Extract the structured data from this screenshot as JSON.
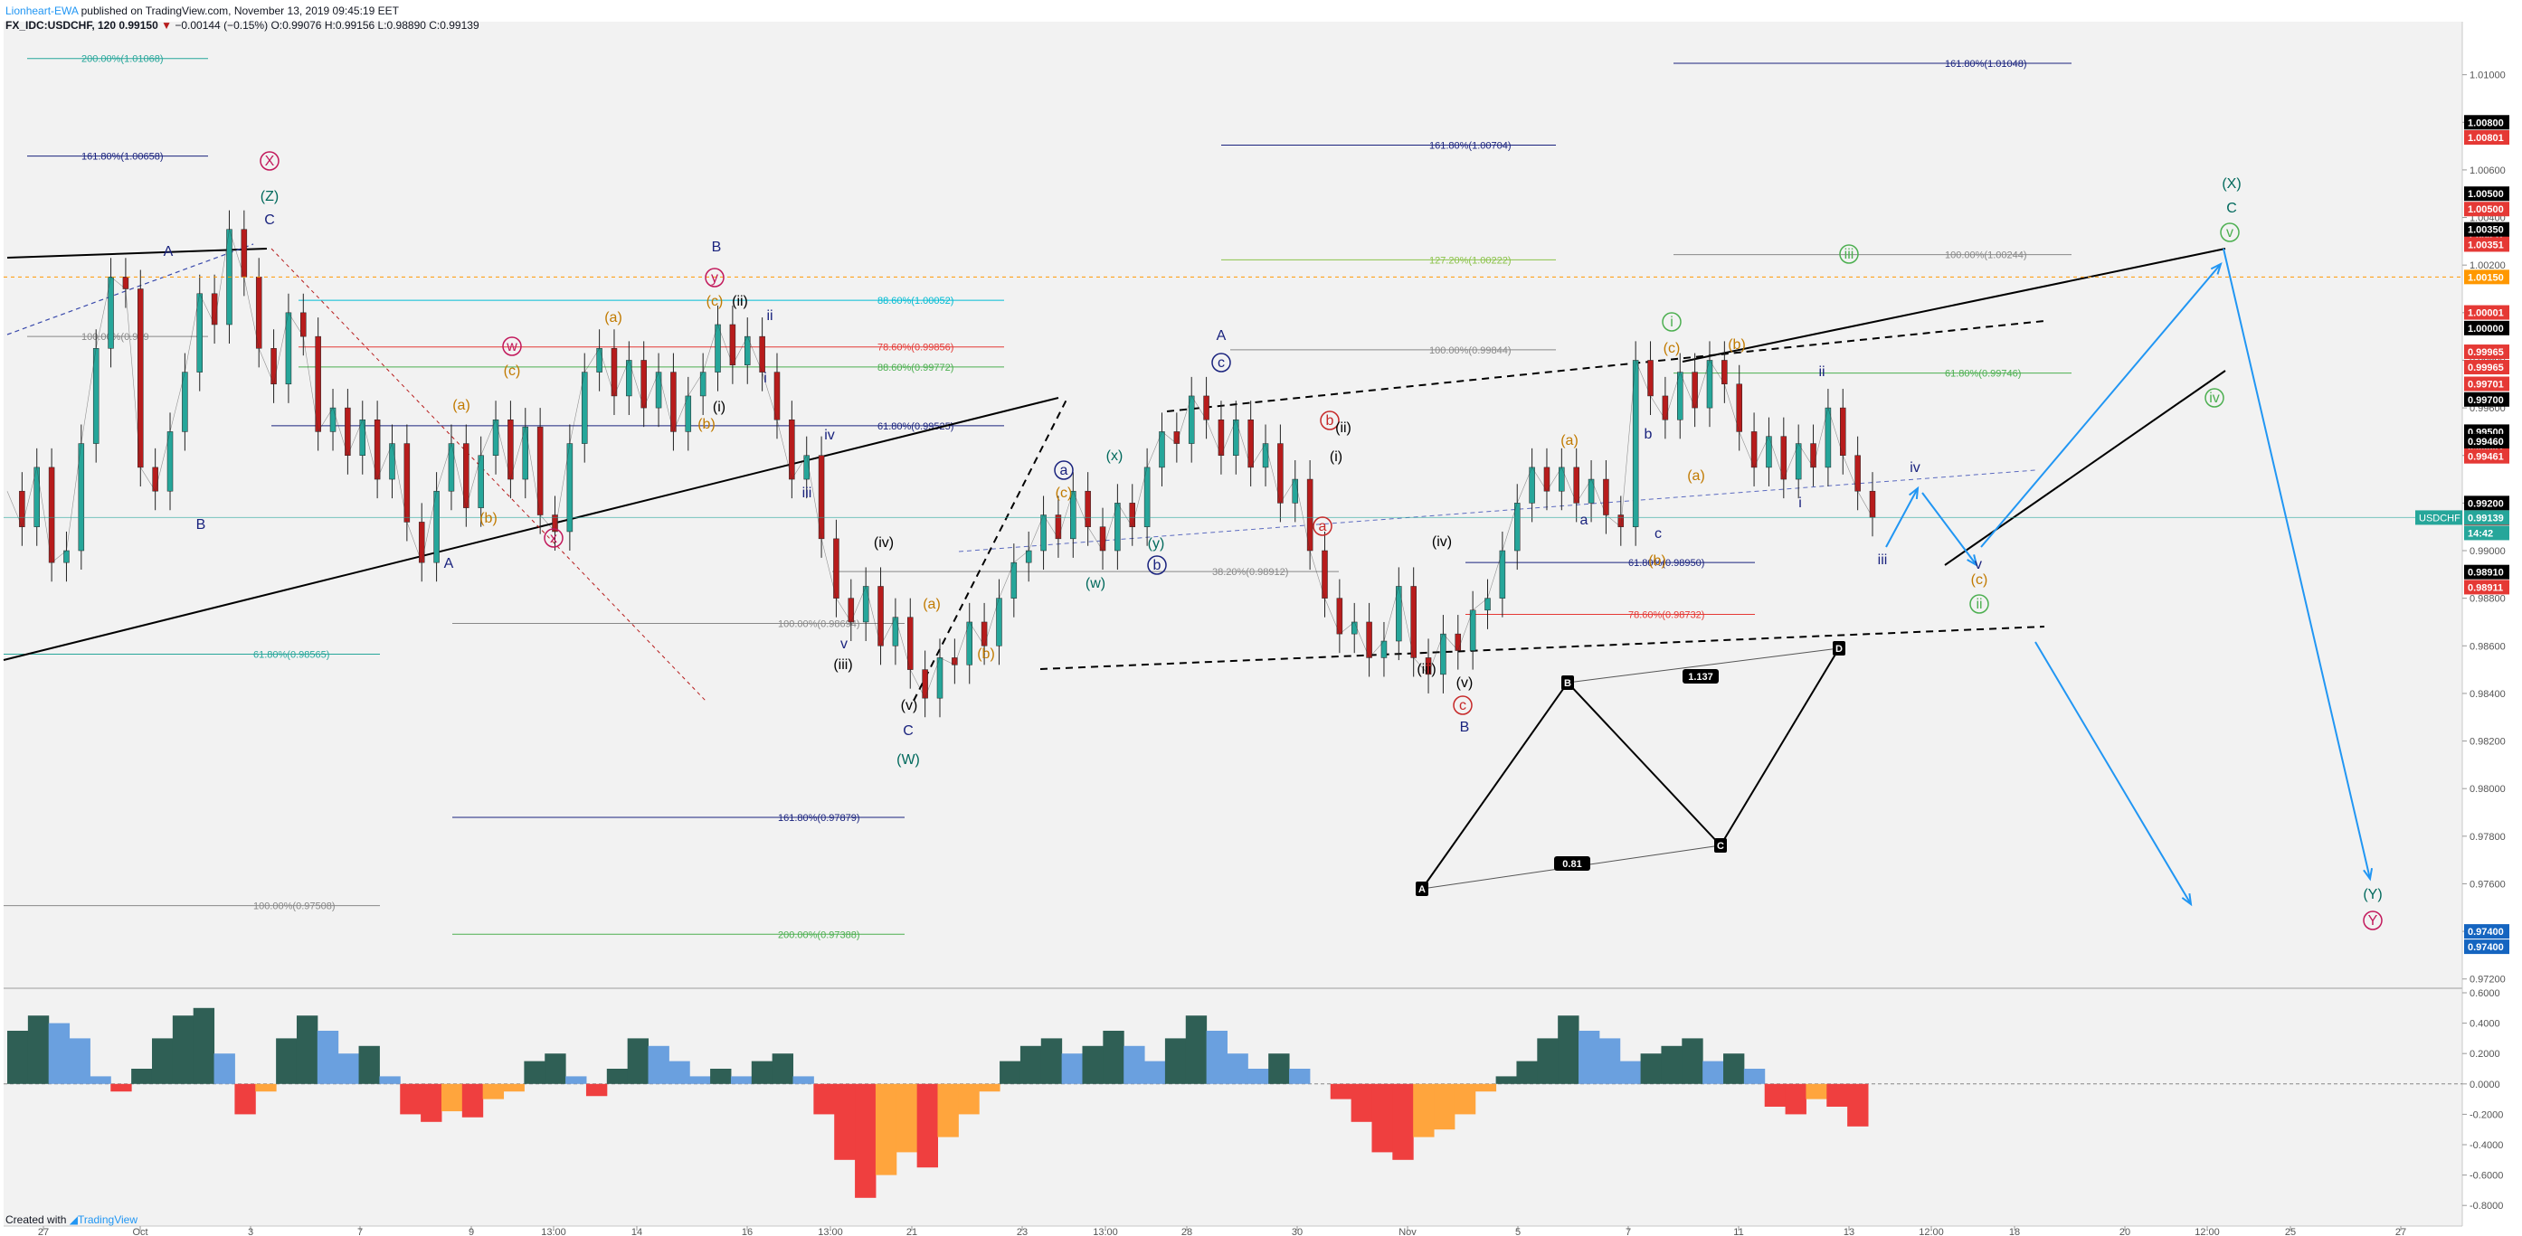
{
  "header": {
    "author": "Lionheart-EWA",
    "published": "published on TradingView.com, November 13, 2019 09:45:19 EET",
    "symbol": "FX_IDC:USDCHF, 120",
    "last": "0.99150",
    "change": "−0.00144 (−0.15%)",
    "ohlc": "O:0.99076 H:0.99156 L:0.98890 C:0.99139"
  },
  "footer": {
    "created": "Created with",
    "brand": "TradingView"
  },
  "colors": {
    "background": "#f2f2f2",
    "up": "#26a69a",
    "down": "#b71c1c",
    "wave_blue": "#1a237e",
    "wave_teal": "#00695c",
    "wave_orange": "#c17a00",
    "wave_magenta": "#c2185b",
    "wave_green": "#4caf50",
    "projection": "#2196f3",
    "osc_up_strong": "#2f5f55",
    "osc_up_weak": "#6aa0df",
    "osc_down_strong": "#ef3f3f",
    "osc_down_weak": "#ffa53d"
  },
  "chart_data": [
    {
      "type": "line",
      "title": "",
      "ylim": [
        0.9718,
        1.012
      ],
      "y_ticks": [
        "1.01000",
        "1.00800",
        "1.00600",
        "1.00400",
        "1.00200",
        "1.00000",
        "0.99800",
        "0.99600",
        "0.99400",
        "0.99200",
        "0.99000",
        "0.98800",
        "0.98600",
        "0.98400",
        "0.98200",
        "0.98000",
        "0.97800",
        "0.97600",
        "0.97400",
        "0.97200"
      ],
      "x_ticks": [
        "27",
        "Oct",
        "3",
        "7",
        "9",
        "13:00",
        "14",
        "16",
        "13:00",
        "21",
        "23",
        "13:00",
        "28",
        "30",
        "Nov",
        "5",
        "7",
        "11",
        "13",
        "12:00",
        "18",
        "20",
        "12:00",
        "25",
        "27"
      ],
      "price_path": [
        {
          "x": 0,
          "y": 0.9925
        },
        {
          "x": 1,
          "y": 0.991
        },
        {
          "x": 2,
          "y": 0.9935
        },
        {
          "x": 3,
          "y": 0.9895
        },
        {
          "x": 4,
          "y": 0.99
        },
        {
          "x": 5,
          "y": 0.9945
        },
        {
          "x": 6,
          "y": 0.9985
        },
        {
          "x": 7,
          "y": 1.0015
        },
        {
          "x": 8,
          "y": 1.001
        },
        {
          "x": 9,
          "y": 0.9935
        },
        {
          "x": 10,
          "y": 0.9925
        },
        {
          "x": 11,
          "y": 0.995
        },
        {
          "x": 12,
          "y": 0.9975
        },
        {
          "x": 13,
          "y": 1.0008
        },
        {
          "x": 14,
          "y": 0.9995
        },
        {
          "x": 15,
          "y": 1.0035
        },
        {
          "x": 16,
          "y": 1.0015
        },
        {
          "x": 17,
          "y": 0.9985
        },
        {
          "x": 18,
          "y": 0.997
        },
        {
          "x": 19,
          "y": 1.0
        },
        {
          "x": 20,
          "y": 0.999
        },
        {
          "x": 21,
          "y": 0.995
        },
        {
          "x": 22,
          "y": 0.996
        },
        {
          "x": 23,
          "y": 0.994
        },
        {
          "x": 24,
          "y": 0.9955
        },
        {
          "x": 25,
          "y": 0.993
        },
        {
          "x": 26,
          "y": 0.9945
        },
        {
          "x": 27,
          "y": 0.9912
        },
        {
          "x": 28,
          "y": 0.9895
        },
        {
          "x": 29,
          "y": 0.9925
        },
        {
          "x": 30,
          "y": 0.9945
        },
        {
          "x": 31,
          "y": 0.9918
        },
        {
          "x": 32,
          "y": 0.994
        },
        {
          "x": 33,
          "y": 0.9955
        },
        {
          "x": 34,
          "y": 0.993
        },
        {
          "x": 35,
          "y": 0.9952
        },
        {
          "x": 36,
          "y": 0.9915
        },
        {
          "x": 37,
          "y": 0.9908
        },
        {
          "x": 38,
          "y": 0.9945
        },
        {
          "x": 39,
          "y": 0.9975
        },
        {
          "x": 40,
          "y": 0.9985
        },
        {
          "x": 41,
          "y": 0.9965
        },
        {
          "x": 42,
          "y": 0.998
        },
        {
          "x": 43,
          "y": 0.996
        },
        {
          "x": 44,
          "y": 0.9975
        },
        {
          "x": 45,
          "y": 0.995
        },
        {
          "x": 46,
          "y": 0.9965
        },
        {
          "x": 47,
          "y": 0.9975
        },
        {
          "x": 48,
          "y": 0.9995
        },
        {
          "x": 49,
          "y": 0.9978
        },
        {
          "x": 50,
          "y": 0.999
        },
        {
          "x": 51,
          "y": 0.9975
        },
        {
          "x": 52,
          "y": 0.9955
        },
        {
          "x": 53,
          "y": 0.993
        },
        {
          "x": 54,
          "y": 0.994
        },
        {
          "x": 55,
          "y": 0.9905
        },
        {
          "x": 56,
          "y": 0.988
        },
        {
          "x": 57,
          "y": 0.987
        },
        {
          "x": 58,
          "y": 0.9885
        },
        {
          "x": 59,
          "y": 0.986
        },
        {
          "x": 60,
          "y": 0.9872
        },
        {
          "x": 61,
          "y": 0.985
        },
        {
          "x": 62,
          "y": 0.9838
        },
        {
          "x": 63,
          "y": 0.9855
        },
        {
          "x": 64,
          "y": 0.9852
        },
        {
          "x": 65,
          "y": 0.987
        },
        {
          "x": 66,
          "y": 0.986
        },
        {
          "x": 67,
          "y": 0.988
        },
        {
          "x": 68,
          "y": 0.9895
        },
        {
          "x": 69,
          "y": 0.99
        },
        {
          "x": 70,
          "y": 0.9915
        },
        {
          "x": 71,
          "y": 0.9905
        },
        {
          "x": 72,
          "y": 0.9925
        },
        {
          "x": 73,
          "y": 0.991
        },
        {
          "x": 74,
          "y": 0.99
        },
        {
          "x": 75,
          "y": 0.992
        },
        {
          "x": 76,
          "y": 0.991
        },
        {
          "x": 77,
          "y": 0.9935
        },
        {
          "x": 78,
          "y": 0.995
        },
        {
          "x": 79,
          "y": 0.9945
        },
        {
          "x": 80,
          "y": 0.9965
        },
        {
          "x": 81,
          "y": 0.9955
        },
        {
          "x": 82,
          "y": 0.994
        },
        {
          "x": 83,
          "y": 0.9955
        },
        {
          "x": 84,
          "y": 0.9935
        },
        {
          "x": 85,
          "y": 0.9945
        },
        {
          "x": 86,
          "y": 0.992
        },
        {
          "x": 87,
          "y": 0.993
        },
        {
          "x": 88,
          "y": 0.99
        },
        {
          "x": 89,
          "y": 0.988
        },
        {
          "x": 90,
          "y": 0.9865
        },
        {
          "x": 91,
          "y": 0.987
        },
        {
          "x": 92,
          "y": 0.9855
        },
        {
          "x": 93,
          "y": 0.9862
        },
        {
          "x": 94,
          "y": 0.9885
        },
        {
          "x": 95,
          "y": 0.9855
        },
        {
          "x": 96,
          "y": 0.9848
        },
        {
          "x": 97,
          "y": 0.9865
        },
        {
          "x": 98,
          "y": 0.9858
        },
        {
          "x": 99,
          "y": 0.9875
        },
        {
          "x": 100,
          "y": 0.988
        },
        {
          "x": 101,
          "y": 0.99
        },
        {
          "x": 102,
          "y": 0.992
        },
        {
          "x": 103,
          "y": 0.9935
        },
        {
          "x": 104,
          "y": 0.9925
        },
        {
          "x": 105,
          "y": 0.9935
        },
        {
          "x": 106,
          "y": 0.992
        },
        {
          "x": 107,
          "y": 0.993
        },
        {
          "x": 108,
          "y": 0.9915
        },
        {
          "x": 109,
          "y": 0.991
        },
        {
          "x": 110,
          "y": 0.998
        },
        {
          "x": 111,
          "y": 0.9965
        },
        {
          "x": 112,
          "y": 0.9955
        },
        {
          "x": 113,
          "y": 0.9975
        },
        {
          "x": 114,
          "y": 0.996
        },
        {
          "x": 115,
          "y": 0.998
        },
        {
          "x": 116,
          "y": 0.997
        },
        {
          "x": 117,
          "y": 0.995
        },
        {
          "x": 118,
          "y": 0.9935
        },
        {
          "x": 119,
          "y": 0.9948
        },
        {
          "x": 120,
          "y": 0.993
        },
        {
          "x": 121,
          "y": 0.9945
        },
        {
          "x": 122,
          "y": 0.9935
        },
        {
          "x": 123,
          "y": 0.996
        },
        {
          "x": 124,
          "y": 0.994
        },
        {
          "x": 125,
          "y": 0.9925
        },
        {
          "x": 126,
          "y": 0.9914
        }
      ],
      "price_labels": [
        "1.00800",
        "1.00801",
        "1.00500",
        "1.00500",
        "1.00451",
        "1.00350",
        "1.00351",
        "1.00150",
        "1.00001",
        "1.00000",
        "0.99965",
        "0.99965",
        "0.99701",
        "0.99700",
        "0.99500",
        "0.99501",
        "0.99460",
        "0.99461",
        "0.99200",
        "0.99201",
        "0.99139",
        "14:42",
        "0.98910",
        "0.98911",
        "0.97400",
        "0.97400"
      ],
      "symbol_badge": "USDCHF",
      "fib_levels": [
        "200.00%(1.01068)",
        "161.80%(1.00658)",
        "100.00%(0.999",
        "88.60%(1.00052)",
        "78.60%(0.99856)",
        "88.60%(0.99772)",
        "61.80%(0.99525)",
        "38.20%(0.98912)",
        "100.00%(0.98694)",
        "61.80%(0.98565)",
        "161.80%(0.97879)",
        "100.00%(0.97508)",
        "200.00%(0.97388)",
        "161.80%(1.00704)",
        "127.20%(1.00222)",
        "100.00%(0.99844)",
        "161.80%(1.01048)",
        "100.00%(1.00244)",
        "61.80%(0.99746)",
        "61.80%(0.98950)",
        "78.60%(0.98732)"
      ],
      "wave_labels": [
        "A",
        "B",
        "A",
        "B",
        "C",
        "(Z)",
        "X",
        "(a)",
        "(b)",
        "(c)",
        "w",
        "x",
        "y",
        "(a)",
        "(b)",
        "(c)",
        "(i)",
        "(ii)",
        "ii",
        "iv",
        "iii",
        "i",
        "v",
        "(iv)",
        "(iii)",
        "(v)",
        "C",
        "(W)",
        "(a)",
        "(b)",
        "(c)",
        "a",
        "b",
        "(w)",
        "(x)",
        "(y)",
        "A",
        "c",
        "b",
        "(i)",
        "(ii)",
        "a",
        "(iii)",
        "(iv)",
        "(v)",
        "B",
        "c",
        "(a)",
        "(b)",
        "(c)",
        "a",
        "b",
        "c",
        "(a)",
        "(b)",
        "i",
        "ii",
        "i",
        "iii",
        "iv",
        "v",
        "(c)",
        "ii",
        "iii",
        "iv",
        "v",
        "C",
        "(X)",
        "(Y)",
        "Y"
      ],
      "harmonic": {
        "points": [
          "A",
          "B",
          "C",
          "D"
        ],
        "ratios": [
          "1.137",
          "0.81"
        ]
      }
    },
    {
      "type": "area",
      "title": "",
      "ylim": [
        -0.9,
        0.6
      ],
      "y_ticks": [
        "0.6000",
        "0.4000",
        "0.2000",
        "0.0000",
        "-0.2000",
        "-0.4000",
        "-0.6000",
        "-0.8000"
      ],
      "values": [
        0.35,
        0.45,
        0.4,
        0.3,
        0.05,
        -0.05,
        0.1,
        0.3,
        0.45,
        0.5,
        0.2,
        -0.2,
        -0.05,
        0.3,
        0.45,
        0.35,
        0.2,
        0.25,
        0.05,
        -0.2,
        -0.25,
        -0.18,
        -0.22,
        -0.1,
        -0.05,
        0.15,
        0.2,
        0.05,
        -0.08,
        0.1,
        0.3,
        0.25,
        0.15,
        0.05,
        0.1,
        0.05,
        0.15,
        0.2,
        0.05,
        -0.2,
        -0.5,
        -0.75,
        -0.6,
        -0.45,
        -0.55,
        -0.35,
        -0.2,
        -0.05,
        0.15,
        0.25,
        0.3,
        0.2,
        0.25,
        0.35,
        0.25,
        0.15,
        0.3,
        0.45,
        0.35,
        0.2,
        0.1,
        0.2,
        0.1,
        0.0,
        -0.1,
        -0.25,
        -0.45,
        -0.5,
        -0.35,
        -0.3,
        -0.2,
        -0.05,
        0.05,
        0.15,
        0.3,
        0.45,
        0.35,
        0.3,
        0.15,
        0.2,
        0.25,
        0.3,
        0.15,
        0.2,
        0.1,
        -0.15,
        -0.2,
        -0.1,
        -0.15,
        -0.28
      ]
    }
  ]
}
